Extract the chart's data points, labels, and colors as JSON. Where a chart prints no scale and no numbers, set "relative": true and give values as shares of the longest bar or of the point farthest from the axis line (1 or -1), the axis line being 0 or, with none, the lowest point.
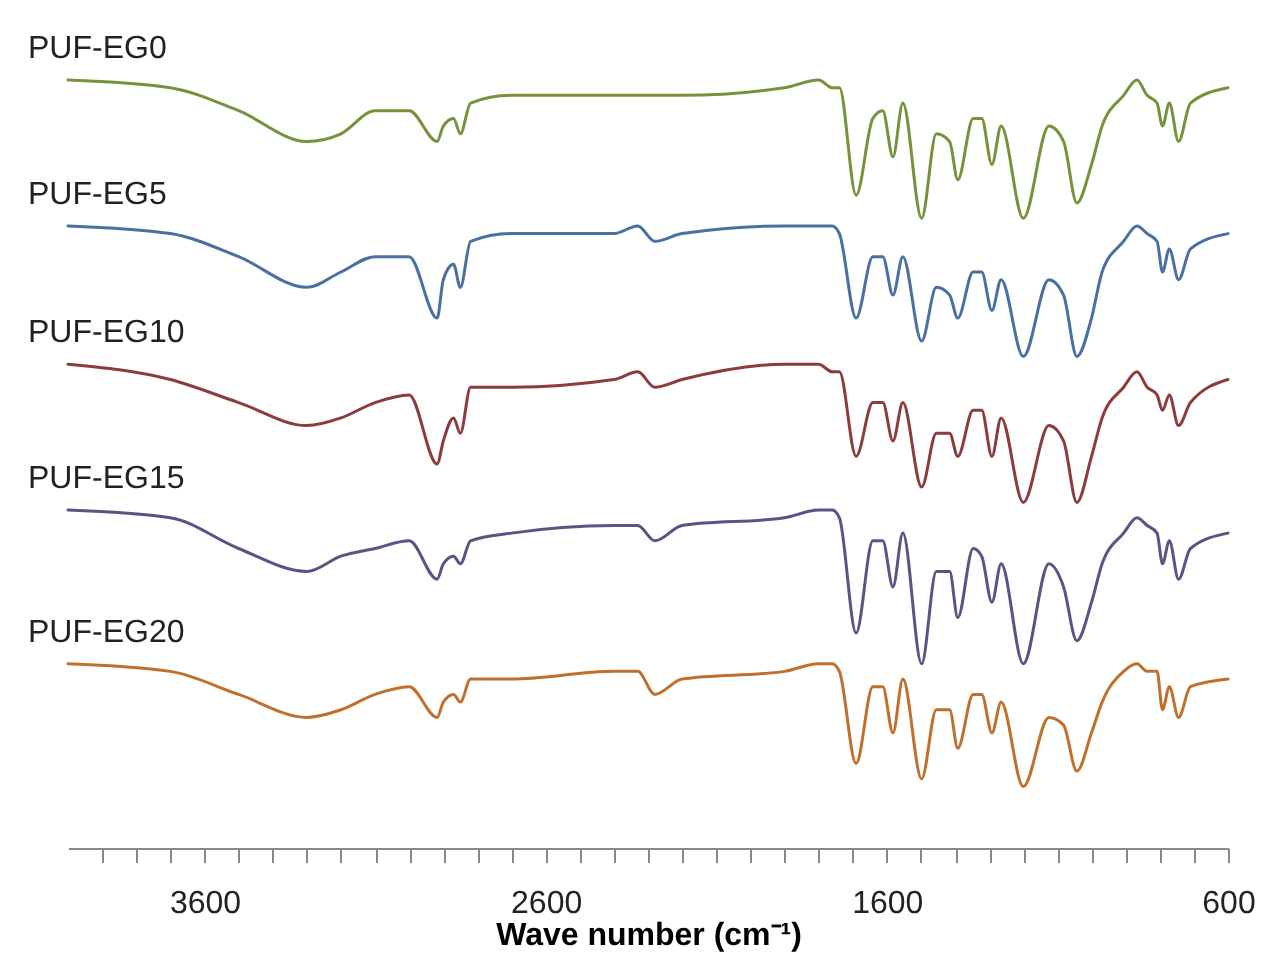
{
  "chart_data": {
    "type": "line",
    "relative": true,
    "xlabel": "Wave number (cm⁻¹)",
    "xlim": [
      4000,
      600
    ],
    "xticks": [
      {
        "value": 3900,
        "label": null
      },
      {
        "value": 3800,
        "label": null
      },
      {
        "value": 3700,
        "label": null
      },
      3600,
      {
        "value": 3500,
        "label": null
      },
      {
        "value": 3400,
        "label": null
      },
      {
        "value": 3300,
        "label": null
      },
      {
        "value": 3200,
        "label": null
      },
      {
        "value": 3100,
        "label": null
      },
      {
        "value": 3000,
        "label": null
      },
      {
        "value": 2900,
        "label": null
      },
      {
        "value": 2800,
        "label": null
      },
      {
        "value": 2700,
        "label": null
      },
      2600,
      {
        "value": 2500,
        "label": null
      },
      {
        "value": 2400,
        "label": null
      },
      {
        "value": 2300,
        "label": null
      },
      {
        "value": 2200,
        "label": null
      },
      {
        "value": 2100,
        "label": null
      },
      {
        "value": 2000,
        "label": null
      },
      {
        "value": 1900,
        "label": null
      },
      {
        "value": 1800,
        "label": null
      },
      {
        "value": 1700,
        "label": null
      },
      1600,
      {
        "value": 1500,
        "label": null
      },
      {
        "value": 1400,
        "label": null
      },
      {
        "value": 1300,
        "label": null
      },
      {
        "value": 1200,
        "label": null
      },
      {
        "value": 1100,
        "label": null
      },
      {
        "value": 1000,
        "label": null
      },
      {
        "value": 900,
        "label": null
      },
      {
        "value": 800,
        "label": null
      },
      {
        "value": 700,
        "label": null
      },
      600
    ],
    "x": [
      4000,
      3700,
      3500,
      3300,
      3200,
      3100,
      3000,
      2918,
      2900,
      2870,
      2850,
      2820,
      2700,
      2400,
      2330,
      2280,
      2200,
      1900,
      1800,
      1760,
      1739,
      1690,
      1641,
      1612,
      1582,
      1553,
      1498,
      1455,
      1416,
      1392,
      1347,
      1322,
      1292,
      1265,
      1200,
      1125,
      1082,
      1043,
      1000,
      969,
      906,
      867,
      837,
      808,
      792,
      772,
      745,
      710,
      600
    ],
    "series": [
      {
        "name": "PUF-EG0",
        "color": "#76923c",
        "values": [
          1.0,
          0.99,
          0.96,
          0.92,
          0.93,
          0.96,
          0.96,
          0.92,
          0.94,
          0.95,
          0.93,
          0.97,
          0.98,
          0.98,
          0.98,
          0.98,
          0.98,
          0.99,
          1.0,
          0.99,
          0.99,
          0.85,
          0.95,
          0.96,
          0.9,
          0.97,
          0.82,
          0.93,
          0.92,
          0.87,
          0.95,
          0.95,
          0.89,
          0.94,
          0.82,
          0.94,
          0.92,
          0.84,
          0.89,
          0.94,
          0.98,
          1.0,
          0.98,
          0.97,
          0.94,
          0.97,
          0.92,
          0.97,
          0.99
        ]
      },
      {
        "name": "PUF-EG5",
        "color": "#4a6fa0",
        "values": [
          0.81,
          0.8,
          0.77,
          0.73,
          0.75,
          0.77,
          0.77,
          0.69,
          0.74,
          0.76,
          0.73,
          0.79,
          0.8,
          0.8,
          0.81,
          0.79,
          0.8,
          0.81,
          0.81,
          0.81,
          0.8,
          0.69,
          0.77,
          0.77,
          0.72,
          0.77,
          0.66,
          0.73,
          0.72,
          0.69,
          0.75,
          0.75,
          0.7,
          0.74,
          0.64,
          0.74,
          0.72,
          0.64,
          0.69,
          0.75,
          0.79,
          0.81,
          0.8,
          0.79,
          0.75,
          0.78,
          0.74,
          0.78,
          0.8
        ]
      },
      {
        "name": "PUF-EG10",
        "color": "#8c3c3c",
        "values": [
          0.63,
          0.61,
          0.58,
          0.55,
          0.56,
          0.58,
          0.59,
          0.5,
          0.53,
          0.56,
          0.54,
          0.6,
          0.6,
          0.61,
          0.62,
          0.6,
          0.61,
          0.63,
          0.63,
          0.62,
          0.62,
          0.51,
          0.58,
          0.58,
          0.53,
          0.58,
          0.47,
          0.54,
          0.54,
          0.51,
          0.57,
          0.57,
          0.51,
          0.56,
          0.45,
          0.55,
          0.53,
          0.45,
          0.51,
          0.56,
          0.6,
          0.62,
          0.6,
          0.59,
          0.57,
          0.59,
          0.55,
          0.58,
          0.61
        ]
      },
      {
        "name": "PUF-EG15",
        "color": "#5e5285",
        "values": [
          0.44,
          0.43,
          0.39,
          0.36,
          0.38,
          0.39,
          0.4,
          0.35,
          0.37,
          0.38,
          0.37,
          0.4,
          0.41,
          0.42,
          0.42,
          0.4,
          0.42,
          0.43,
          0.44,
          0.44,
          0.43,
          0.28,
          0.4,
          0.4,
          0.34,
          0.41,
          0.24,
          0.36,
          0.36,
          0.3,
          0.39,
          0.38,
          0.32,
          0.37,
          0.24,
          0.37,
          0.34,
          0.27,
          0.32,
          0.37,
          0.41,
          0.43,
          0.42,
          0.41,
          0.37,
          0.4,
          0.35,
          0.39,
          0.41
        ]
      },
      {
        "name": "PUF-EG20",
        "color": "#c0702c",
        "values": [
          0.24,
          0.23,
          0.2,
          0.17,
          0.18,
          0.2,
          0.21,
          0.17,
          0.19,
          0.2,
          0.19,
          0.22,
          0.22,
          0.23,
          0.23,
          0.2,
          0.22,
          0.23,
          0.24,
          0.24,
          0.23,
          0.11,
          0.21,
          0.21,
          0.15,
          0.22,
          0.09,
          0.18,
          0.18,
          0.13,
          0.2,
          0.2,
          0.15,
          0.19,
          0.08,
          0.17,
          0.16,
          0.1,
          0.15,
          0.19,
          0.23,
          0.24,
          0.23,
          0.23,
          0.18,
          0.21,
          0.17,
          0.21,
          0.22
        ]
      }
    ]
  }
}
